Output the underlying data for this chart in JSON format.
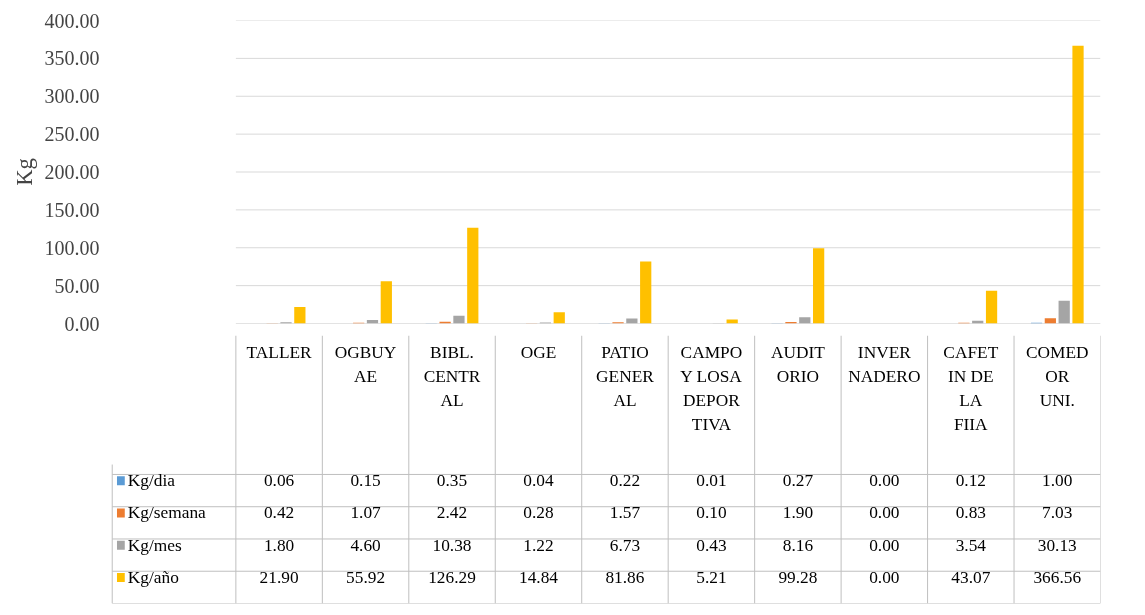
{
  "chart_data": {
    "type": "bar",
    "ylabel": "Kg",
    "categories": [
      "TALLER",
      "OGBUYAE",
      "BIBL. CENTRAL",
      "OGE",
      "PATIO GENERAL",
      "CAMPO Y LOSA DEPORTIVA",
      "AUDITORIO",
      "INVERNADERO",
      "CAFETIN DE LA FIIA",
      "COMEDOR UNI."
    ],
    "series": [
      {
        "name": "Kg/dia",
        "color": "#5b9bd5",
        "values": [
          0.06,
          0.15,
          0.35,
          0.04,
          0.22,
          0.01,
          0.27,
          0.0,
          0.12,
          1.0
        ],
        "value_labels": [
          "0.06",
          "0.15",
          "0.35",
          "0.04",
          "0.22",
          "0.01",
          "0.27",
          "0.00",
          "0.12",
          "1.00"
        ]
      },
      {
        "name": "Kg/semana",
        "color": "#ed7d31",
        "values": [
          0.42,
          1.07,
          2.42,
          0.28,
          1.57,
          0.1,
          1.9,
          0.0,
          0.83,
          7.03
        ],
        "value_labels": [
          "0.42",
          "1.07",
          "2.42",
          "0.28",
          "1.57",
          "0.10",
          "1.90",
          "0.00",
          "0.83",
          "7.03"
        ]
      },
      {
        "name": "Kg/mes",
        "color": "#a5a5a5",
        "values": [
          1.8,
          4.6,
          10.38,
          1.22,
          6.73,
          0.43,
          8.16,
          0.0,
          3.54,
          30.13
        ],
        "value_labels": [
          "1.80",
          "4.60",
          "10.38",
          "1.22",
          "6.73",
          "0.43",
          "8.16",
          "0.00",
          "3.54",
          "30.13"
        ]
      },
      {
        "name": "Kg/año",
        "color": "#ffc000",
        "values": [
          21.9,
          55.92,
          126.29,
          14.84,
          81.86,
          5.21,
          99.28,
          0.0,
          43.07,
          366.56
        ],
        "value_labels": [
          "21.90",
          "55.92",
          "126.29",
          "14.84",
          "81.86",
          "5.21",
          "99.28",
          "0.00",
          "43.07",
          "366.56"
        ]
      }
    ],
    "ylim": [
      0,
      400
    ],
    "yticks": [
      {
        "value": 0,
        "label": "0.00"
      },
      {
        "value": 50,
        "label": "50.00"
      },
      {
        "value": 100,
        "label": "100.00"
      },
      {
        "value": 150,
        "label": "150.00"
      },
      {
        "value": 200,
        "label": "200.00"
      },
      {
        "value": 250,
        "label": "250.00"
      },
      {
        "value": 300,
        "label": "300.00"
      },
      {
        "value": 350,
        "label": "350.00"
      },
      {
        "value": 400,
        "label": "400.00"
      }
    ],
    "grid": "y",
    "legend": "bottom"
  }
}
